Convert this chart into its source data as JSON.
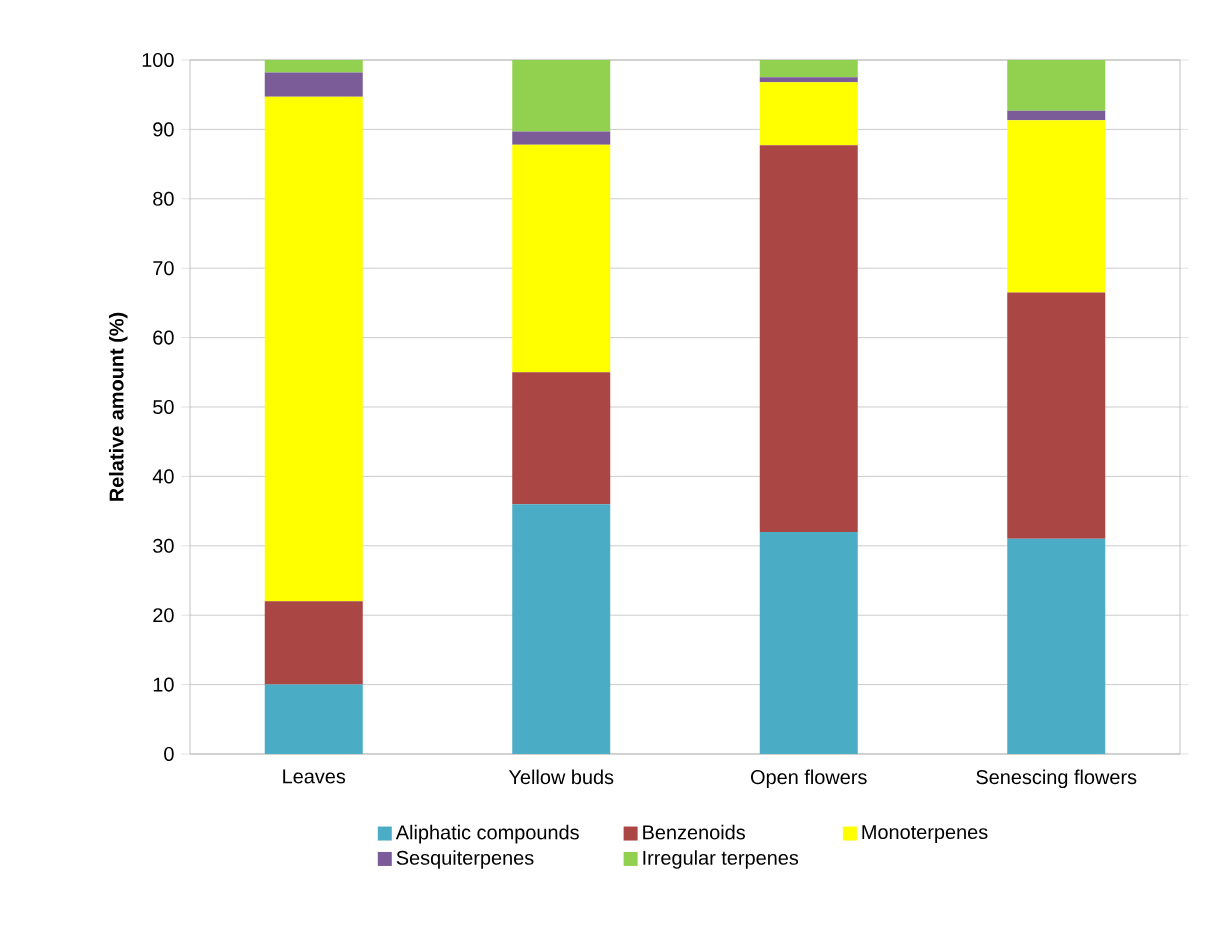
{
  "chart_data": {
    "type": "bar",
    "stacked": true,
    "ylabel": "Relative amount (%)",
    "categories": [
      "Leaves",
      "Yellow buds",
      "Open flowers",
      "Senescing flowers"
    ],
    "series": [
      {
        "name": "Aliphatic compounds",
        "color": "#4bacc6",
        "values": [
          10,
          36,
          32,
          31
        ]
      },
      {
        "name": "Benzenoids",
        "color": "#aa4644",
        "values": [
          12,
          19,
          55.7,
          35.5
        ]
      },
      {
        "name": "Monoterpenes",
        "color": "#ffff00",
        "values": [
          72.7,
          32.8,
          9.1,
          24.8
        ]
      },
      {
        "name": "Sesquiterpenes",
        "color": "#7b5c99",
        "values": [
          3.5,
          1.9,
          0.7,
          1.4
        ]
      },
      {
        "name": "Irregular terpenes",
        "color": "#92d050",
        "values": [
          1.8,
          10.3,
          2.5,
          7.3
        ]
      }
    ],
    "ylim": [
      0,
      100
    ],
    "yticks": [
      0,
      10,
      20,
      30,
      40,
      50,
      60,
      70,
      80,
      90,
      100
    ],
    "grid": "y",
    "legend": "bottom"
  }
}
